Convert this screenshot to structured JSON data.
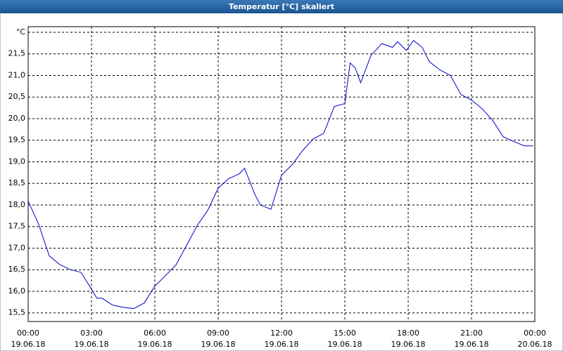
{
  "chart_data": {
    "type": "line",
    "title": "Temperatur [°C] skaliert",
    "x": [
      "19.06.18 00:00",
      "19.06.18 00:30",
      "19.06.18 01:00",
      "19.06.18 01:30",
      "19.06.18 02:00",
      "19.06.18 02:30",
      "19.06.18 03:00",
      "19.06.18 03:15",
      "19.06.18 03:30",
      "19.06.18 04:00",
      "19.06.18 04:30",
      "19.06.18 05:00",
      "19.06.18 05:30",
      "19.06.18 06:00",
      "19.06.18 06:30",
      "19.06.18 07:00",
      "19.06.18 07:30",
      "19.06.18 08:00",
      "19.06.18 08:30",
      "19.06.18 09:00",
      "19.06.18 09:30",
      "19.06.18 10:00",
      "19.06.18 10:15",
      "19.06.18 10:45",
      "19.06.18 11:00",
      "19.06.18 11:30",
      "19.06.18 12:00",
      "19.06.18 12:30",
      "19.06.18 13:00",
      "19.06.18 13:30",
      "19.06.18 14:00",
      "19.06.18 14:30",
      "19.06.18 15:00",
      "19.06.18 15:15",
      "19.06.18 15:30",
      "19.06.18 15:45",
      "19.06.18 16:15",
      "19.06.18 16:30",
      "19.06.18 16:45",
      "19.06.18 17:15",
      "19.06.18 17:30",
      "19.06.18 17:55",
      "19.06.18 18:15",
      "19.06.18 18:40",
      "19.06.18 19:00",
      "19.06.18 19:30",
      "19.06.18 20:00",
      "19.06.18 20:30",
      "19.06.18 21:00",
      "19.06.18 21:30",
      "19.06.18 22:00",
      "19.06.18 22:30",
      "19.06.18 23:00",
      "19.06.18 23:30",
      "19.06.18 23:55"
    ],
    "series": [
      {
        "name": "Temperatur",
        "color": "#0000cc",
        "values": [
          18.09,
          17.55,
          16.82,
          16.62,
          16.5,
          16.44,
          16.05,
          15.84,
          15.84,
          15.68,
          15.63,
          15.6,
          15.73,
          16.12,
          16.36,
          16.61,
          17.06,
          17.52,
          17.87,
          18.39,
          18.61,
          18.72,
          18.85,
          18.23,
          18.0,
          17.9,
          18.69,
          18.93,
          19.26,
          19.53,
          19.66,
          20.28,
          20.35,
          21.29,
          21.17,
          20.83,
          21.48,
          21.6,
          21.74,
          21.65,
          21.78,
          21.58,
          21.81,
          21.65,
          21.32,
          21.13,
          21.0,
          20.56,
          20.43,
          20.23,
          19.96,
          19.58,
          19.47,
          19.37,
          19.37
        ]
      }
    ],
    "xlim": [
      "19.06.18 00:00",
      "20.06.18 00:00"
    ],
    "xticks": [
      {
        "value": "19.06.18 00:00",
        "label": [
          "00:00",
          "19.06.18"
        ]
      },
      {
        "value": "19.06.18 03:00",
        "label": [
          "03:00",
          "19.06.18"
        ]
      },
      {
        "value": "19.06.18 06:00",
        "label": [
          "06:00",
          "19.06.18"
        ]
      },
      {
        "value": "19.06.18 09:00",
        "label": [
          "09:00",
          "19.06.18"
        ]
      },
      {
        "value": "19.06.18 12:00",
        "label": [
          "12:00",
          "19.06.18"
        ]
      },
      {
        "value": "19.06.18 15:00",
        "label": [
          "15:00",
          "19.06.18"
        ]
      },
      {
        "value": "19.06.18 18:00",
        "label": [
          "18:00",
          "19.06.18"
        ]
      },
      {
        "value": "19.06.18 21:00",
        "label": [
          "21:00",
          "19.06.18"
        ]
      },
      {
        "value": "20.06.18 00:00",
        "label": [
          "00:00",
          "20.06.18"
        ]
      }
    ],
    "ylim": [
      15.3,
      22.13
    ],
    "yticks": [
      {
        "value": 15.5,
        "label": "15,5"
      },
      {
        "value": 16,
        "label": "16,0"
      },
      {
        "value": 16.5,
        "label": "16,5"
      },
      {
        "value": 17,
        "label": "17,0"
      },
      {
        "value": 17.5,
        "label": "17,5"
      },
      {
        "value": 18,
        "label": "18,0"
      },
      {
        "value": 18.5,
        "label": "18,5"
      },
      {
        "value": 19,
        "label": "19,0"
      },
      {
        "value": 19.5,
        "label": "19,5"
      },
      {
        "value": 20,
        "label": "20,0"
      },
      {
        "value": 20.5,
        "label": "20,5"
      },
      {
        "value": 21,
        "label": "21,0"
      },
      {
        "value": 21.5,
        "label": "21,5"
      },
      {
        "value": 22,
        "label": "°C"
      }
    ],
    "grid": true
  }
}
